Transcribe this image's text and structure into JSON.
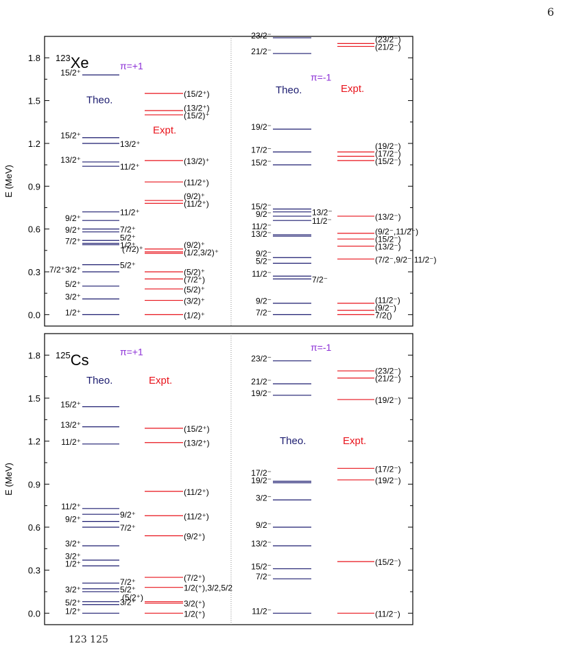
{
  "page": {
    "number": "6"
  },
  "colors": {
    "theo": "#1a1a6e",
    "expt": "#e8121a",
    "parity": "#8b2ed6",
    "axis": "#000000",
    "divider": "#888888"
  },
  "chart_data": [
    {
      "type": "level-scheme",
      "nucleus": {
        "mass": "123",
        "symbol": "Xe"
      },
      "ylabel": "E (MeV)",
      "ylim": [
        -0.08,
        1.95
      ],
      "yticks": [
        "0.0",
        "0.3",
        "0.6",
        "0.9",
        "1.2",
        "1.5",
        "1.8"
      ],
      "panels": [
        {
          "parity": "π=+1",
          "theo_label": "Theo.",
          "expt_label": "Expt.",
          "theo": [
            {
              "e": 0.0,
              "label": "1/2⁺",
              "side": "left"
            },
            {
              "e": 0.11,
              "label": "3/2⁺",
              "side": "left"
            },
            {
              "e": 0.2,
              "label": "5/2⁺",
              "side": "left"
            },
            {
              "e": 0.3,
              "label": "7/2⁺3/2⁺",
              "side": "left"
            },
            {
              "e": 0.35,
              "label": "5/2⁺",
              "side": "right"
            },
            {
              "e": 0.49,
              "label": "1/2⁺",
              "side": "right"
            },
            {
              "e": 0.5,
              "label": "7/2⁺",
              "side": "left"
            },
            {
              "e": 0.52,
              "label": "5/2⁺",
              "side": "right"
            },
            {
              "e": 0.58,
              "label": "9/2⁺",
              "side": "left"
            },
            {
              "e": 0.6,
              "label": "7/2⁺",
              "side": "right"
            },
            {
              "e": 0.66,
              "label": "9/2⁺",
              "side": "left"
            },
            {
              "e": 0.72,
              "label": "11/2⁺",
              "side": "right"
            },
            {
              "e": 1.04,
              "label": "11/2⁺",
              "side": "right"
            },
            {
              "e": 1.07,
              "label": "13/2⁺",
              "side": "left"
            },
            {
              "e": 1.2,
              "label": "13/2⁺",
              "side": "right"
            },
            {
              "e": 1.24,
              "label": "15/2⁺",
              "side": "left"
            },
            {
              "e": 1.68,
              "label": "15/2⁺",
              "side": "left"
            }
          ],
          "expt": [
            {
              "e": 0.0,
              "label": "(1/2)⁺"
            },
            {
              "e": 0.1,
              "label": "(3/2)⁺"
            },
            {
              "e": 0.18,
              "label": "(5/2)⁺"
            },
            {
              "e": 0.25,
              "label": "(7/2⁺)"
            },
            {
              "e": 0.3,
              "label": "(5/2)⁺"
            },
            {
              "e": 0.43,
              "label": "(7/2)⁺",
              "side": "left"
            },
            {
              "e": 0.44,
              "label": "(1/2,3/2)⁺"
            },
            {
              "e": 0.46,
              "label": "(9/2)⁺"
            },
            {
              "e": 0.78,
              "label": "(11/2⁺)"
            },
            {
              "e": 0.8,
              "label": "(9/2)⁺"
            },
            {
              "e": 0.93,
              "label": "(11/2⁺)"
            },
            {
              "e": 1.08,
              "label": "(13/2)⁺"
            },
            {
              "e": 1.4,
              "label": "(15/2)⁺"
            },
            {
              "e": 1.43,
              "label": "(13/2⁺)"
            },
            {
              "e": 1.55,
              "label": "(15/2⁺)"
            }
          ]
        },
        {
          "parity": "π=-1",
          "theo_label": "Theo.",
          "expt_label": "Expt.",
          "theo": [
            {
              "e": 0.0,
              "label": "7/2⁻",
              "side": "left"
            },
            {
              "e": 0.08,
              "label": "9/2⁻",
              "side": "left"
            },
            {
              "e": 0.25,
              "label": "7/2⁻",
              "side": "right"
            },
            {
              "e": 0.27,
              "label": "11/2⁻",
              "side": "left"
            },
            {
              "e": 0.36,
              "label": "5/2⁻",
              "side": "left"
            },
            {
              "e": 0.4,
              "label": "9/2⁻",
              "side": "left"
            },
            {
              "e": 0.55,
              "label": "13/2⁻",
              "side": "left"
            },
            {
              "e": 0.56,
              "label": "11/2⁻",
              "side": "left"
            },
            {
              "e": 0.66,
              "label": "11/2⁻",
              "side": "right"
            },
            {
              "e": 0.69,
              "label": "9/2⁻",
              "side": "left"
            },
            {
              "e": 0.72,
              "label": "13/2⁻",
              "side": "right"
            },
            {
              "e": 0.74,
              "label": "15/2⁻",
              "side": "left"
            },
            {
              "e": 1.05,
              "label": "15/2⁻",
              "side": "left"
            },
            {
              "e": 1.14,
              "label": "17/2⁻",
              "side": "left"
            },
            {
              "e": 1.3,
              "label": "19/2⁻",
              "side": "left"
            },
            {
              "e": 1.83,
              "label": "21/2⁻",
              "side": "left"
            },
            {
              "e": 1.94,
              "label": "23/2⁻",
              "side": "left"
            }
          ],
          "expt": [
            {
              "e": 0.0,
              "label": "7/2()"
            },
            {
              "e": 0.03,
              "label": "(9/2⁻)"
            },
            {
              "e": 0.08,
              "label": "(11/2⁻)"
            },
            {
              "e": 0.39,
              "label": "(7/2⁻,9/2⁻,11/2⁻)"
            },
            {
              "e": 0.48,
              "label": "(13/2⁻)"
            },
            {
              "e": 0.53,
              "label": "(15/2⁻)"
            },
            {
              "e": 0.57,
              "label": "(9/2⁻,11/2⁻)"
            },
            {
              "e": 0.69,
              "label": "(13/2⁻)"
            },
            {
              "e": 1.08,
              "label": "(15/2⁻)"
            },
            {
              "e": 1.11,
              "label": "(17/2⁻)"
            },
            {
              "e": 1.14,
              "label": "(19/2⁻)"
            },
            {
              "e": 1.88,
              "label": "(21/2⁻)"
            },
            {
              "e": 1.9,
              "label": "(23/2⁻)"
            }
          ]
        }
      ]
    },
    {
      "type": "level-scheme",
      "nucleus": {
        "mass": "125",
        "symbol": "Cs"
      },
      "ylabel": "E (MeV)",
      "ylim": [
        -0.08,
        1.95
      ],
      "yticks": [
        "0.0",
        "0.3",
        "0.6",
        "0.9",
        "1.2",
        "1.5",
        "1.8"
      ],
      "panels": [
        {
          "parity": "π=+1",
          "theo_label": "Theo.",
          "expt_label": "Expt.",
          "theo": [
            {
              "e": 0.0,
              "label": "1/2⁺",
              "side": "left"
            },
            {
              "e": 0.06,
              "label": "5/2⁺",
              "side": "left"
            },
            {
              "e": 0.08,
              "label": "3/2⁺",
              "side": "right"
            },
            {
              "e": 0.15,
              "label": "3/2⁺",
              "side": "left"
            },
            {
              "e": 0.17,
              "label": "5/2⁺",
              "side": "right"
            },
            {
              "e": 0.21,
              "label": "7/2⁺",
              "side": "right"
            },
            {
              "e": 0.33,
              "label": "1/2⁺",
              "side": "left"
            },
            {
              "e": 0.37,
              "label": "3/2⁺",
              "side": "left"
            },
            {
              "e": 0.47,
              "label": "3/2⁺",
              "side": "left"
            },
            {
              "e": 0.6,
              "label": "7/2⁺",
              "side": "right"
            },
            {
              "e": 0.64,
              "label": "9/2⁺",
              "side": "left"
            },
            {
              "e": 0.69,
              "label": "9/2⁺",
              "side": "right"
            },
            {
              "e": 0.73,
              "label": "11/2⁺",
              "side": "left"
            },
            {
              "e": 1.18,
              "label": "11/2⁺",
              "side": "left"
            },
            {
              "e": 1.3,
              "label": "13/2⁺",
              "side": "left"
            },
            {
              "e": 1.44,
              "label": "15/2⁺",
              "side": "left"
            }
          ],
          "expt": [
            {
              "e": 0.0,
              "label": "1/2(⁺)"
            },
            {
              "e": 0.07,
              "label": "3/2(⁺)"
            },
            {
              "e": 0.08,
              "label": "(5/2⁺)",
              "side": "left"
            },
            {
              "e": 0.18,
              "label": "1/2(⁺),3/2,5/2"
            },
            {
              "e": 0.25,
              "label": "(7/2⁺)"
            },
            {
              "e": 0.54,
              "label": "(9/2⁺)"
            },
            {
              "e": 0.68,
              "label": "(11/2⁺)"
            },
            {
              "e": 0.85,
              "label": "(11/2⁺)"
            },
            {
              "e": 1.19,
              "label": "(13/2⁺)"
            },
            {
              "e": 1.29,
              "label": "(15/2⁺)"
            }
          ]
        },
        {
          "parity": "π=-1",
          "theo_label": "Theo.",
          "expt_label": "Expt.",
          "theo": [
            {
              "e": 0.0,
              "label": "11/2⁻",
              "side": "left"
            },
            {
              "e": 0.24,
              "label": "7/2⁻",
              "side": "left"
            },
            {
              "e": 0.31,
              "label": "15/2⁻",
              "side": "left"
            },
            {
              "e": 0.47,
              "label": "13/2⁻",
              "side": "left"
            },
            {
              "e": 0.6,
              "label": "9/2⁻",
              "side": "left"
            },
            {
              "e": 0.79,
              "label": "3/2⁻",
              "side": "left"
            },
            {
              "e": 0.91,
              "label": "19/2⁻",
              "side": "left"
            },
            {
              "e": 0.92,
              "label": "17/2⁻",
              "side": "left"
            },
            {
              "e": 1.52,
              "label": "19/2⁻",
              "side": "left"
            },
            {
              "e": 1.6,
              "label": "21/2⁻",
              "side": "left"
            },
            {
              "e": 1.76,
              "label": "23/2⁻",
              "side": "left"
            }
          ],
          "expt": [
            {
              "e": 0.0,
              "label": "(11/2⁻)"
            },
            {
              "e": 0.36,
              "label": "(15/2⁻)"
            },
            {
              "e": 0.93,
              "label": "(19/2⁻)"
            },
            {
              "e": 1.01,
              "label": "(17/2⁻)"
            },
            {
              "e": 1.49,
              "label": "(19/2⁻)"
            },
            {
              "e": 1.64,
              "label": "(21/2⁻)"
            },
            {
              "e": 1.69,
              "label": "(23/2⁻)"
            }
          ]
        }
      ]
    }
  ],
  "caption_fragment": "123 125"
}
